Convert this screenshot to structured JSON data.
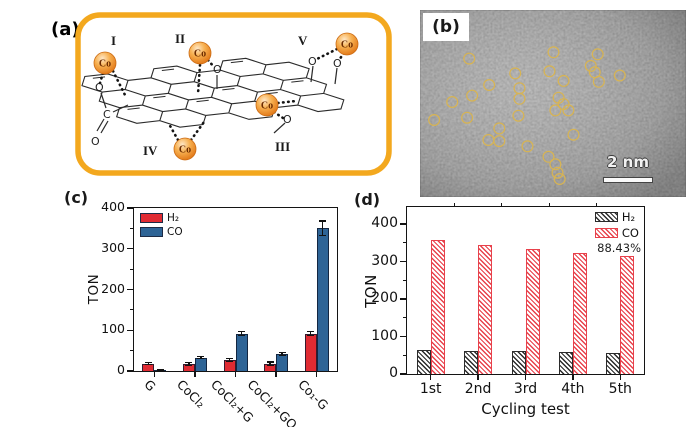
{
  "figure": {
    "background": "#ffffff",
    "panels": {
      "a": {
        "label": "(a)",
        "border_color": "#F3A81E",
        "atom_label": "Co",
        "oxygen_label": "O",
        "carbon_label": "C",
        "sites": {
          "s1": "I",
          "s2": "II",
          "s3": "III",
          "s4": "IV",
          "s5": "V"
        },
        "co_sphere_colors": {
          "center": "#ffe3bd",
          "mid": "#f5a援",
          "edge": "#e07818"
        }
      },
      "b": {
        "label": "(b)",
        "scale_bar_label": "2 nm",
        "marker_color": "#D8B452",
        "markers": [
          [
            18.5,
            26.0
          ],
          [
            50.2,
            22.6
          ],
          [
            66.8,
            23.7
          ],
          [
            64.2,
            29.9
          ],
          [
            48.7,
            32.8
          ],
          [
            65.7,
            33.3
          ],
          [
            35.8,
            33.9
          ],
          [
            75.1,
            35.0
          ],
          [
            54.0,
            37.9
          ],
          [
            67.2,
            38.4
          ],
          [
            26.0,
            40.1
          ],
          [
            37.4,
            41.8
          ],
          [
            19.6,
            45.8
          ],
          [
            37.4,
            47.5
          ],
          [
            52.1,
            46.9
          ],
          [
            12.1,
            49.2
          ],
          [
            54.0,
            50.3
          ],
          [
            50.9,
            53.7
          ],
          [
            55.8,
            53.7
          ],
          [
            5.3,
            58.8
          ],
          [
            17.7,
            57.6
          ],
          [
            37.0,
            56.5
          ],
          [
            29.8,
            63.3
          ],
          [
            57.7,
            66.7
          ],
          [
            25.7,
            69.5
          ],
          [
            29.8,
            70.1
          ],
          [
            40.4,
            72.9
          ],
          [
            48.3,
            78.5
          ],
          [
            50.9,
            82.5
          ],
          [
            51.7,
            87.0
          ],
          [
            52.5,
            90.4
          ]
        ]
      },
      "c": {
        "label": "(c)"
      },
      "d": {
        "label": "(d)"
      }
    }
  },
  "chart_data": [
    {
      "id": "c",
      "type": "bar",
      "title": "",
      "categories": [
        "G",
        "CoCl₂",
        "CoCl₂+G",
        "CoCl₂+GO",
        "Co₁-G"
      ],
      "series": [
        {
          "name": "H₂",
          "style": "solid",
          "color": "#E02B33",
          "values": [
            18,
            17,
            27,
            18,
            92
          ],
          "errors": [
            3,
            3,
            3,
            4,
            5
          ]
        },
        {
          "name": "CO",
          "style": "solid",
          "color": "#2E6496",
          "values": [
            2,
            33,
            92,
            42,
            350
          ],
          "errors": [
            1,
            2,
            4,
            3,
            18
          ]
        }
      ],
      "xlabel": "",
      "ylabel": "TON",
      "ylim": [
        0,
        400
      ],
      "yticks": [
        0,
        100,
        200,
        300,
        400
      ],
      "legend_position": "top-left",
      "grid": false
    },
    {
      "id": "d",
      "type": "bar",
      "title": "",
      "categories": [
        "1st",
        "2nd",
        "3rd",
        "4th",
        "5th"
      ],
      "series": [
        {
          "name": "H₂",
          "style": "hatched",
          "color": "#2B2B2B",
          "values": [
            64,
            62,
            60,
            58,
            57
          ],
          "errors": null
        },
        {
          "name": "CO",
          "style": "hatched",
          "color": "#E8414B",
          "values": [
            358,
            345,
            333,
            322,
            314
          ],
          "errors": null
        }
      ],
      "xlabel": "Cycling test",
      "ylabel": "TON",
      "ylim": [
        0,
        445
      ],
      "yticks": [
        0,
        100,
        200,
        300,
        400
      ],
      "legend_position": "top-right",
      "annotation": {
        "text": "88.43%"
      },
      "grid": false
    }
  ]
}
